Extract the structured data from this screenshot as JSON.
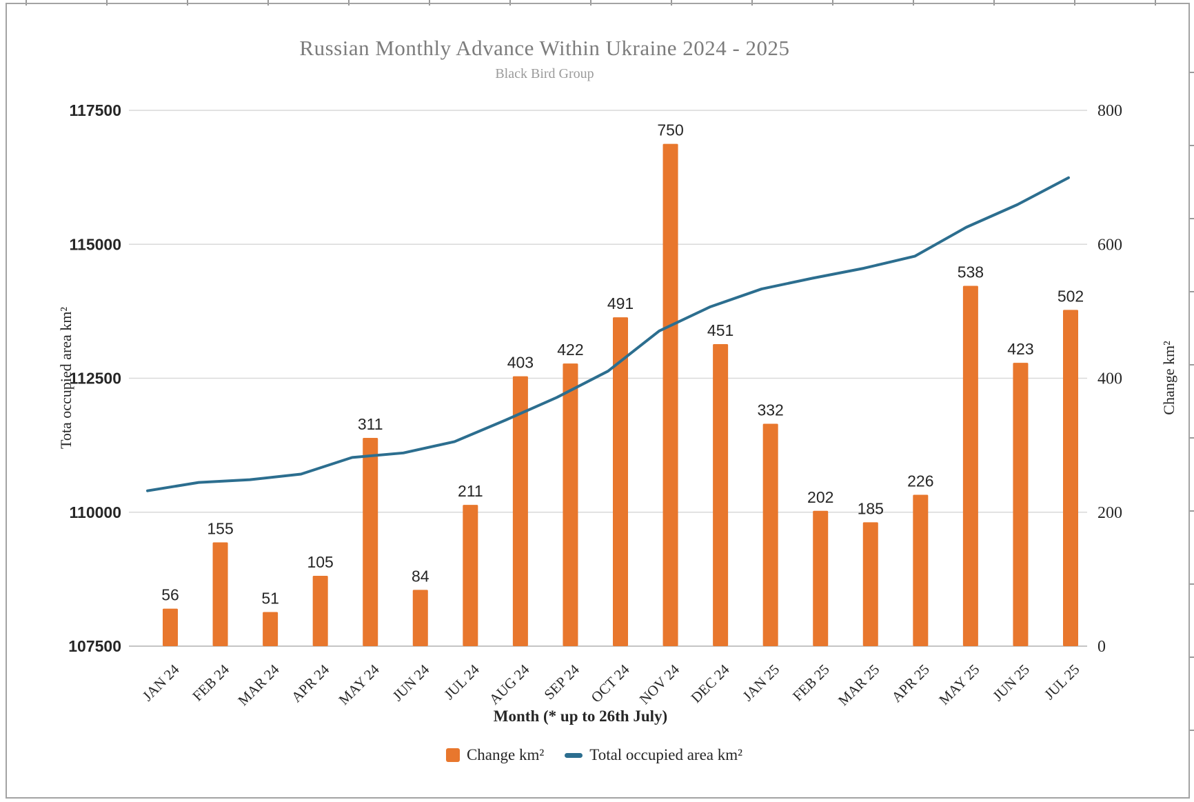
{
  "page": {
    "title": "Russian Monthly Advance Within Ukraine 2024 - 2025",
    "subtitle": "Black Bird Group"
  },
  "colors": {
    "bar": "#E8772D",
    "line": "#2C6E8F",
    "grid": "#D9D9D9",
    "baseline": "#C4C4C4",
    "title_text": "#7C7C7C",
    "subtitle_text": "#9B9B9B",
    "label_text": "#262626",
    "border": "#A3A3A3"
  },
  "chart_data": {
    "type": "combo_bar_line",
    "title": "Russian Monthly Advance Within Ukraine 2024 - 2025",
    "subtitle": "Black Bird Group",
    "xlabel": "Month (* up to 26th July)",
    "grid": true,
    "show_bar_value_labels": true,
    "categories": [
      "JAN 24",
      "FEB 24",
      "MAR 24",
      "APR 24",
      "MAY 24",
      "JUN 24",
      "JUL 24",
      "AUG 24",
      "SEP 24",
      "OCT 24",
      "NOV 24",
      "DEC 24",
      "JAN 25",
      "FEB 25",
      "MAR 25",
      "APR 25",
      "MAY 25",
      "JUN 25",
      "JUL 25"
    ],
    "series": [
      {
        "name": "Change km²",
        "type": "bar",
        "axis": "right",
        "values": [
          56,
          155,
          51,
          105,
          311,
          84,
          211,
          403,
          422,
          491,
          750,
          451,
          332,
          202,
          185,
          226,
          538,
          423,
          502
        ]
      },
      {
        "name": "Total occupied area km²",
        "type": "line",
        "axis": "left",
        "values": [
          110400,
          110555,
          110606,
          110711,
          111022,
          111106,
          111317,
          111720,
          112142,
          112633,
          113383,
          113834,
          114166,
          114368,
          114553,
          114779,
          115317,
          115740,
          116242
        ]
      }
    ],
    "left_axis": {
      "label": "Tota occupied area km²",
      "lim": [
        107500,
        117500
      ],
      "ticks": [
        107500,
        110000,
        112500,
        115000,
        117500
      ]
    },
    "right_axis": {
      "label": "Change km²",
      "lim": [
        0,
        800
      ],
      "ticks": [
        0,
        200,
        400,
        600,
        800
      ]
    },
    "legend": {
      "position": "bottom",
      "items": [
        {
          "label": "Change km²",
          "marker": "square"
        },
        {
          "label": "Total occupied area km²",
          "marker": "dash"
        }
      ]
    }
  }
}
